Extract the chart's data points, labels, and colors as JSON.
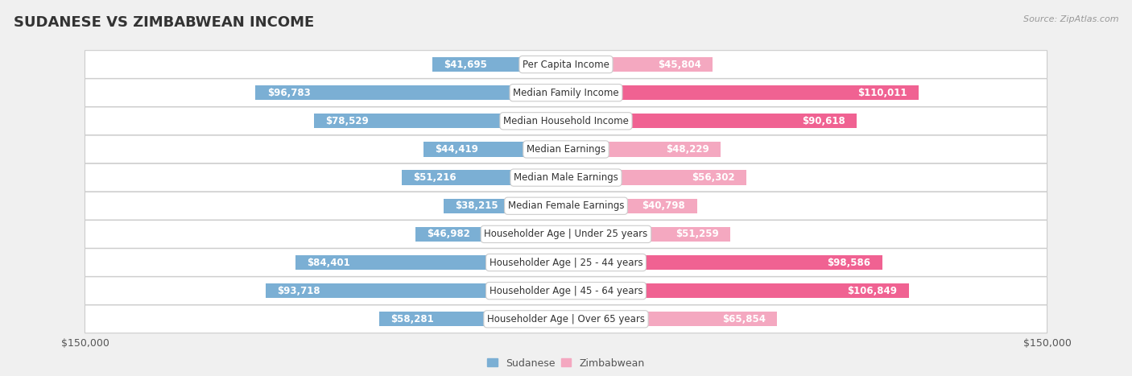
{
  "title": "SUDANESE VS ZIMBABWEAN INCOME",
  "source": "Source: ZipAtlas.com",
  "categories": [
    "Per Capita Income",
    "Median Family Income",
    "Median Household Income",
    "Median Earnings",
    "Median Male Earnings",
    "Median Female Earnings",
    "Householder Age | Under 25 years",
    "Householder Age | 25 - 44 years",
    "Householder Age | 45 - 64 years",
    "Householder Age | Over 65 years"
  ],
  "sudanese": [
    41695,
    96783,
    78529,
    44419,
    51216,
    38215,
    46982,
    84401,
    93718,
    58281
  ],
  "zimbabwean": [
    45804,
    110011,
    90618,
    48229,
    56302,
    40798,
    51259,
    98586,
    106849,
    65854
  ],
  "sudanese_labels": [
    "$41,695",
    "$96,783",
    "$78,529",
    "$44,419",
    "$51,216",
    "$38,215",
    "$46,982",
    "$84,401",
    "$93,718",
    "$58,281"
  ],
  "zimbabwean_labels": [
    "$45,804",
    "$110,011",
    "$90,618",
    "$48,229",
    "$56,302",
    "$40,798",
    "$51,259",
    "$98,586",
    "$106,849",
    "$65,854"
  ],
  "sudanese_color": "#7bafd4",
  "zimbabwean_color_light": "#f4a8c0",
  "zimbabwean_color_dark": "#f06292",
  "sudanese_label_inside_color": "#ffffff",
  "sudanese_label_outside_color": "#555555",
  "zimbabwean_label_inside_color": "#ffffff",
  "zimbabwean_label_outside_color": "#555555",
  "background_color": "#f0f0f0",
  "row_bg_color": "#ffffff",
  "row_border_color": "#cccccc",
  "center_box_bg": "#ffffff",
  "center_box_border": "#cccccc",
  "xlim": 150000,
  "bar_height": 0.52,
  "inside_label_threshold": 30000,
  "title_fontsize": 13,
  "label_fontsize": 8.5,
  "cat_fontsize": 8.5,
  "axis_label_fontsize": 9,
  "legend_fontsize": 9
}
